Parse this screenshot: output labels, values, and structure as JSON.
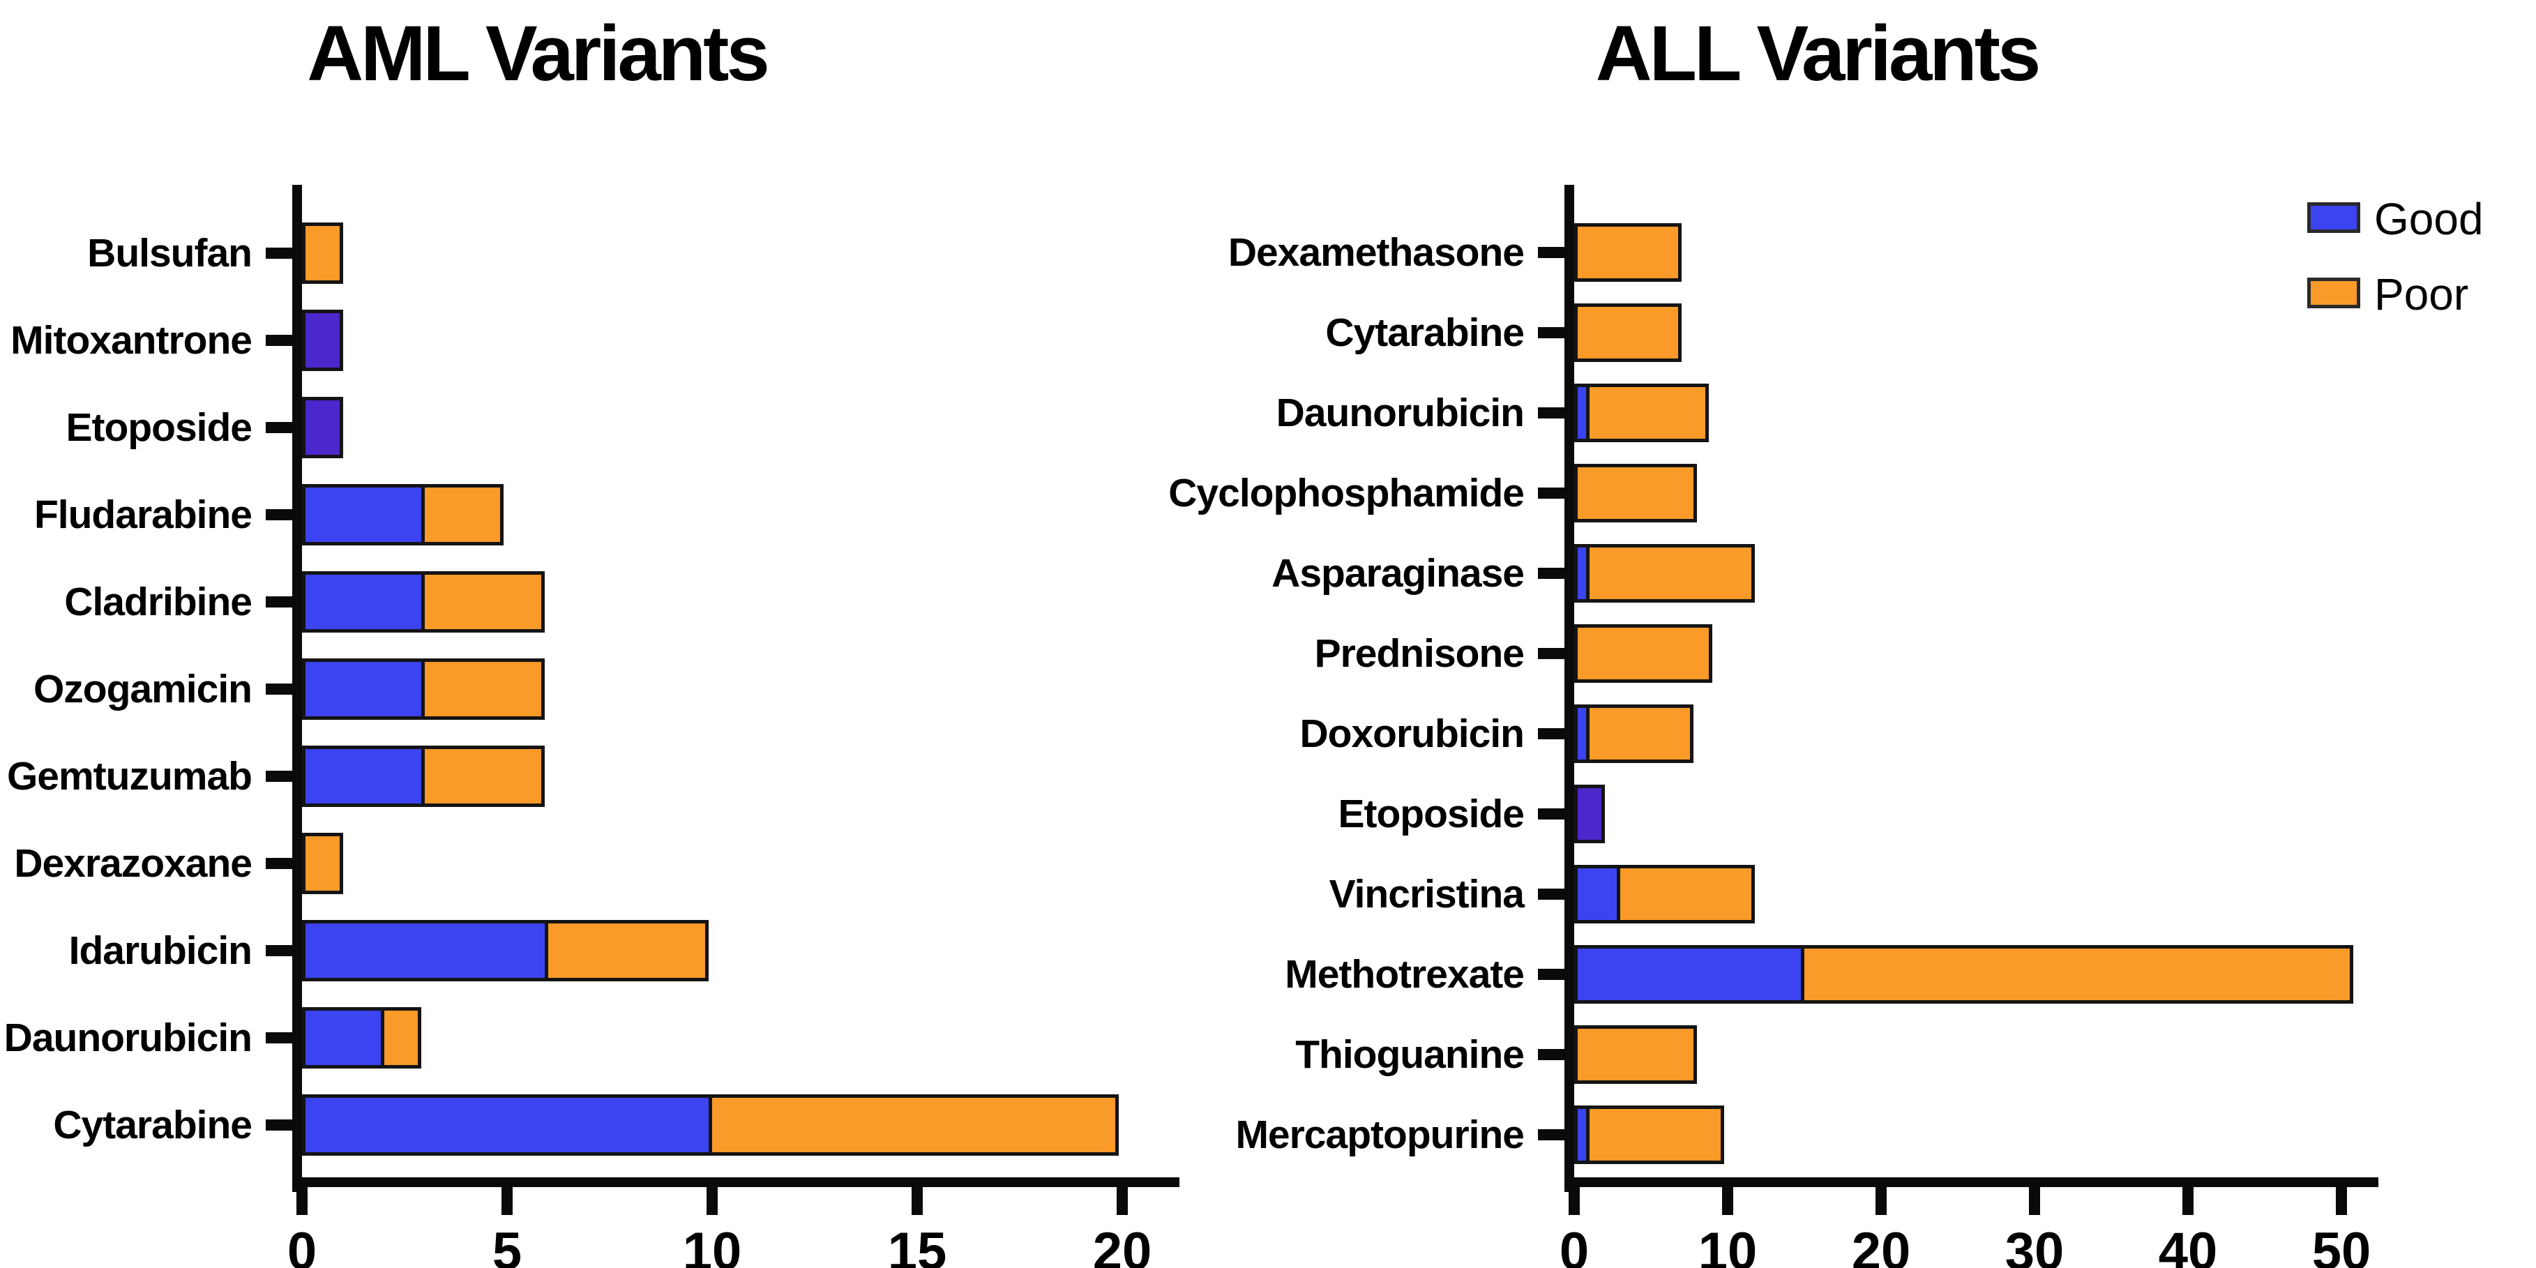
{
  "page": {
    "background": "#ffffff"
  },
  "colors": {
    "good": "#3B44F0",
    "good_solo": "#4A28CC",
    "poor": "#FA9A28",
    "axis": "#0A0A0A",
    "bar_border": "#141414",
    "text": "#000000"
  },
  "legend": {
    "position": "top-right",
    "items": [
      {
        "label": "Good",
        "color_key": "good"
      },
      {
        "label": "Poor",
        "color_key": "poor"
      }
    ]
  },
  "chart_data": [
    {
      "type": "bar",
      "orientation": "horizontal",
      "stacked": true,
      "title": "AML Variants",
      "xlabel": "",
      "ylabel": "",
      "grid": false,
      "xlim": [
        0,
        21.4
      ],
      "x_ticks": [
        0,
        5,
        10,
        15,
        20
      ],
      "series": [
        {
          "name": "Good"
        },
        {
          "name": "Poor"
        }
      ],
      "rows": [
        {
          "label": "Bulsufan",
          "good": 0,
          "poor": 1
        },
        {
          "label": "Mitoxantrone",
          "good": 1,
          "poor": 0
        },
        {
          "label": "Etoposide",
          "good": 1,
          "poor": 0
        },
        {
          "label": "Fludarabine",
          "good": 3,
          "poor": 2
        },
        {
          "label": "Cladribine",
          "good": 3,
          "poor": 3
        },
        {
          "label": "Ozogamicin",
          "good": 3,
          "poor": 3
        },
        {
          "label": "Gemtuzumab",
          "good": 3,
          "poor": 3
        },
        {
          "label": "Dexrazoxane",
          "good": 0,
          "poor": 1
        },
        {
          "label": "Idarubicin",
          "good": 6,
          "poor": 4
        },
        {
          "label": "Daunorubicin",
          "good": 2,
          "poor": 1
        },
        {
          "label": "Cytarabine",
          "good": 10,
          "poor": 10
        }
      ]
    },
    {
      "type": "bar",
      "orientation": "horizontal",
      "stacked": true,
      "title": "ALL Variants",
      "xlabel": "",
      "ylabel": "",
      "grid": false,
      "xlim": [
        0,
        52.4
      ],
      "x_ticks": [
        0,
        10,
        20,
        30,
        40,
        50
      ],
      "series": [
        {
          "name": "Good"
        },
        {
          "name": "Poor"
        }
      ],
      "rows": [
        {
          "label": "Dexamethasone",
          "good": 0,
          "poor": 7
        },
        {
          "label": "Cytarabine",
          "good": 0,
          "poor": 7
        },
        {
          "label": "Daunorubicin",
          "good": 1,
          "poor": 8
        },
        {
          "label": "Cyclophosphamide",
          "good": 0,
          "poor": 8
        },
        {
          "label": "Asparaginase",
          "good": 1,
          "poor": 11
        },
        {
          "label": "Prednisone",
          "good": 0,
          "poor": 9
        },
        {
          "label": "Doxorubicin",
          "good": 1,
          "poor": 7
        },
        {
          "label": "Etoposide",
          "good": 2,
          "poor": 0
        },
        {
          "label": "Vincristina",
          "good": 3,
          "poor": 9
        },
        {
          "label": "Methotrexate",
          "good": 15,
          "poor": 36
        },
        {
          "label": "Thioguanine",
          "good": 0,
          "poor": 8
        },
        {
          "label": "Mercaptopurine",
          "good": 1,
          "poor": 9
        }
      ]
    }
  ]
}
